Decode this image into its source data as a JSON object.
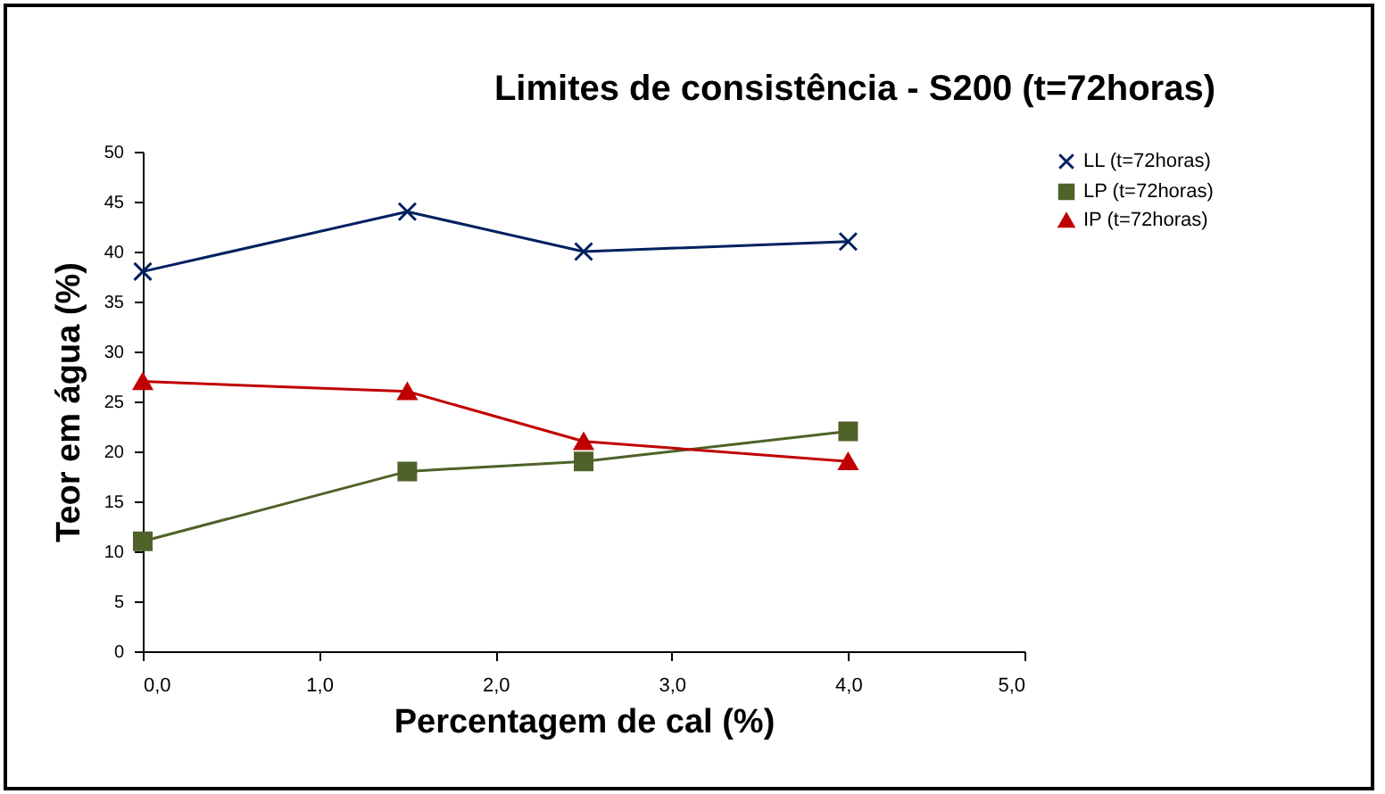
{
  "chart_data": {
    "type": "line",
    "title": "Limites de consistência - S200 (t=72horas)",
    "xlabel": "Percentagem de cal (%)",
    "ylabel": "Teor em água (%)",
    "xlim": [
      0,
      5
    ],
    "xticks": [
      {
        "value": 0,
        "label": "0,0"
      },
      {
        "value": 1,
        "label": "1,0"
      },
      {
        "value": 2,
        "label": "2,0"
      },
      {
        "value": 3,
        "label": "3,0"
      },
      {
        "value": 4,
        "label": "4,0"
      },
      {
        "value": 5,
        "label": "5,0"
      }
    ],
    "ylim": [
      0,
      50
    ],
    "yticks": [
      0,
      5,
      10,
      15,
      20,
      25,
      30,
      35,
      40,
      45,
      50
    ],
    "x": [
      0,
      1.5,
      2.5,
      4
    ],
    "series": [
      {
        "name": "LL (t=72horas)",
        "color": "#002060",
        "marker": "cross",
        "values": [
          38,
          44,
          40,
          41
        ]
      },
      {
        "name": "LP (t=72horas)",
        "color": "#4f6228",
        "marker": "square",
        "values": [
          11,
          18,
          19,
          22
        ]
      },
      {
        "name": "IP (t=72horas)",
        "color": "#c00000",
        "marker": "triangle",
        "values": [
          27,
          26,
          21,
          19
        ]
      }
    ],
    "grid": false,
    "legend": "right"
  }
}
